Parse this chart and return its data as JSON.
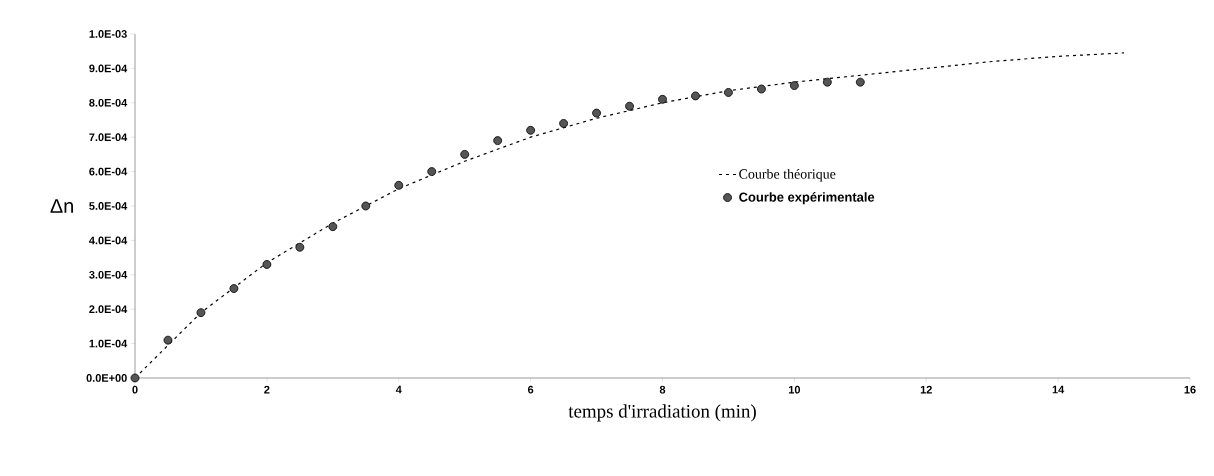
{
  "chart_data": {
    "type": "scatter",
    "xlabel": "temps d'irradiation  (min)",
    "ylabel": "Δn",
    "xlim": [
      0,
      16
    ],
    "xticks": [
      0,
      2,
      4,
      6,
      8,
      10,
      12,
      14,
      16
    ],
    "ylim": [
      0,
      0.001
    ],
    "yticks": [
      {
        "value": 0,
        "label": "0.0E+00"
      },
      {
        "value": 0.0001,
        "label": "1.0E-04"
      },
      {
        "value": 0.0002,
        "label": "2.0E-04"
      },
      {
        "value": 0.0003,
        "label": "3.0E-04"
      },
      {
        "value": 0.0004,
        "label": "4.0E-04"
      },
      {
        "value": 0.0005,
        "label": "5.0E-04"
      },
      {
        "value": 0.0006,
        "label": "6.0E-04"
      },
      {
        "value": 0.0007,
        "label": "7.0E-04"
      },
      {
        "value": 0.0008,
        "label": "8.0E-04"
      },
      {
        "value": 0.0009,
        "label": "9.0E-04"
      },
      {
        "value": 0.001,
        "label": "1.0E-03"
      }
    ],
    "grid": false,
    "legend": "right",
    "series": [
      {
        "name": "Courbe théorique",
        "type": "line",
        "line_style": "dotted",
        "marker": "none",
        "color": "#000000",
        "x": [
          0,
          1,
          2,
          3,
          4,
          5,
          6,
          7,
          8,
          9,
          10,
          11,
          12,
          13,
          14,
          15
        ],
        "values": [
          0,
          0.00019,
          0.000335,
          0.00045,
          0.00055,
          0.00063,
          0.0007,
          0.000755,
          0.0008,
          0.000835,
          0.00086,
          0.00088,
          0.0009,
          0.00092,
          0.000935,
          0.000945
        ]
      },
      {
        "name": "Courbe expérimentale",
        "marker": "circle",
        "color": "#555555",
        "x": [
          0,
          0.5,
          1,
          1.5,
          2,
          2.5,
          3,
          3.5,
          4,
          4.5,
          5,
          5.5,
          6,
          6.5,
          7,
          7.5,
          8,
          8.5,
          9,
          9.5,
          10,
          10.5,
          11
        ],
        "values": [
          0,
          0.00011,
          0.00019,
          0.00026,
          0.00033,
          0.00038,
          0.00044,
          0.0005,
          0.00056,
          0.0006,
          0.00065,
          0.00069,
          0.00072,
          0.00074,
          0.00077,
          0.00079,
          0.00081,
          0.00082,
          0.00083,
          0.00084,
          0.00085,
          0.00086,
          0.00086
        ]
      }
    ]
  }
}
